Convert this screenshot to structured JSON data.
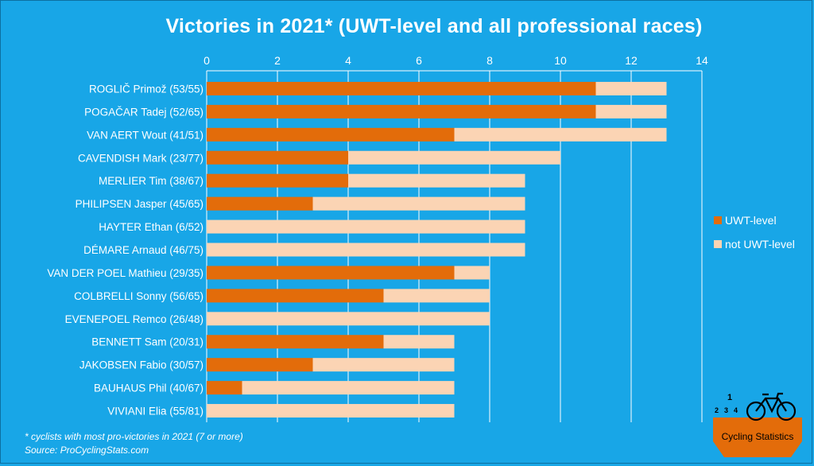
{
  "chart_data": {
    "type": "bar",
    "orientation": "horizontal",
    "stacked": true,
    "title": "Victories in 2021* (UWT-level and all professional races)",
    "categories": [
      "ROGLIČ Primož (53/55)",
      "POGAČAR Tadej (52/65)",
      "VAN AERT Wout (41/51)",
      "CAVENDISH Mark (23/77)",
      "MERLIER Tim (38/67)",
      "PHILIPSEN Jasper (45/65)",
      "HAYTER Ethan (6/52)",
      "DÉMARE Arnaud (46/75)",
      "VAN DER POEL Mathieu (29/35)",
      "COLBRELLI Sonny (56/65)",
      "EVENEPOEL Remco (26/48)",
      "BENNETT Sam (20/31)",
      "JAKOBSEN Fabio (30/57)",
      "BAUHAUS Phil (40/67)",
      "VIVIANI Elia (55/81)"
    ],
    "series": [
      {
        "name": "UWT-level",
        "color": "#e36c0a",
        "values": [
          11,
          11,
          7,
          4,
          4,
          3,
          0,
          0,
          7,
          5,
          0,
          5,
          3,
          1,
          0
        ]
      },
      {
        "name": "not UWT-level",
        "color": "#fbd4b4",
        "values": [
          2,
          2,
          6,
          6,
          5,
          6,
          9,
          9,
          1,
          3,
          8,
          2,
          4,
          6,
          7
        ]
      }
    ],
    "xlim": [
      0,
      14
    ],
    "x_ticks": [
      0,
      2,
      4,
      6,
      8,
      10,
      12,
      14
    ],
    "x_axis_position": "top",
    "grid": "vertical",
    "legend_position": "right"
  },
  "footnotes": {
    "note": "* cyclists with most pro-victories in 2021 (7 or more)",
    "source": "Source: ProCyclingStats.com"
  },
  "logo": {
    "label": "Cycling Statistics",
    "digits": [
      "1",
      "2",
      "3",
      "4"
    ],
    "badge_color": "#e36c0a",
    "icon": "bicycle-icon"
  }
}
